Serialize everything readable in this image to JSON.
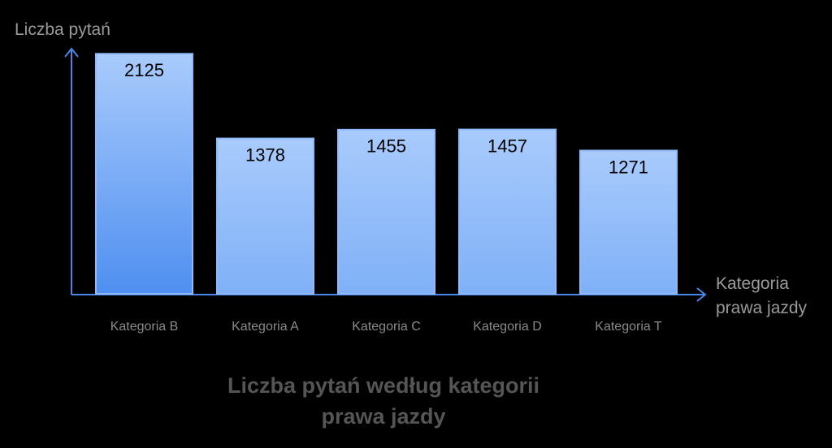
{
  "chart_data": {
    "type": "bar",
    "title": "Liczba pytań według kategorii prawa jazdy",
    "y_label": "Liczba pytań",
    "x_label": "Kategoria prawa jazdy",
    "categories": [
      "Kategoria B",
      "Kategoria A",
      "Kategoria C",
      "Kategoria D",
      "Kategoria T"
    ],
    "values": [
      2125,
      1378,
      1455,
      1457,
      1271
    ],
    "color": "#8fbaf9",
    "ylim": [
      0,
      2170
    ]
  }
}
